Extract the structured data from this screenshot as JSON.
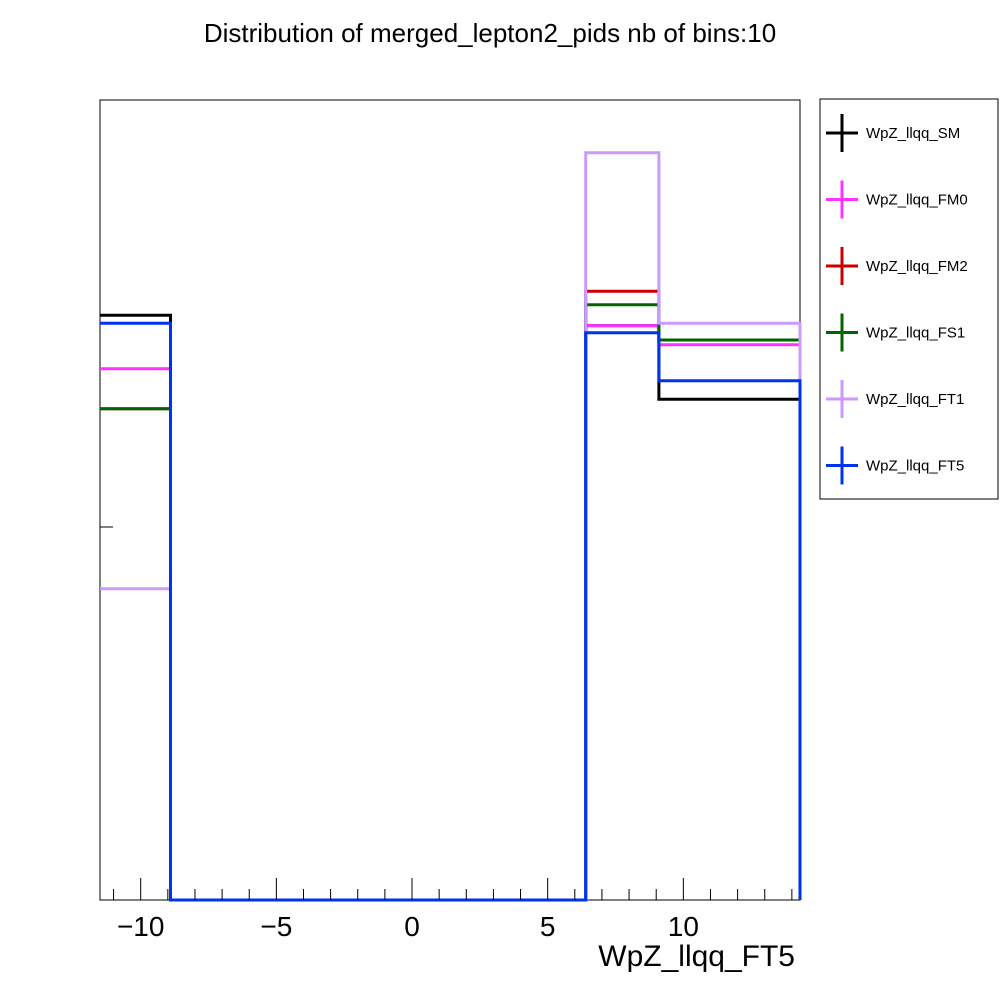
{
  "chart_data": {
    "type": "step-histogram",
    "title": "Distribution of merged_lepton2_pids nb of bins:10",
    "xlabel": "WpZ_llqq_FT5",
    "ylabel": "",
    "xlim": [
      -11.5,
      14.3
    ],
    "ylim": [
      0,
      1.0
    ],
    "bin_edges": [
      -11.5,
      -8.9,
      -6.4,
      -3.8,
      -1.3,
      1.3,
      3.8,
      6.4,
      9.1,
      11.7,
      14.3
    ],
    "x_ticks": [
      -10,
      -5,
      0,
      5,
      10
    ],
    "x_tick_labels": [
      "−10",
      "−5",
      "0",
      "5",
      "10"
    ],
    "legend_position": "right",
    "series": [
      {
        "name": "WpZ_llqq_SM",
        "color": "#000000",
        "values": [
          0.731,
          0,
          0,
          0,
          0,
          0,
          0,
          0.718,
          0.626,
          0.626
        ]
      },
      {
        "name": "WpZ_llqq_FM0",
        "color": "#ff33ff",
        "values": [
          0.664,
          0,
          0,
          0,
          0,
          0,
          0,
          0.718,
          0.694,
          0.694
        ]
      },
      {
        "name": "WpZ_llqq_FM2",
        "color": "#cc0000",
        "values": [
          0.614,
          0,
          0,
          0,
          0,
          0,
          0,
          0.761,
          0.7,
          0.7
        ]
      },
      {
        "name": "WpZ_llqq_FS1",
        "color": "#006600",
        "values": [
          0.614,
          0,
          0,
          0,
          0,
          0,
          0,
          0.744,
          0.7,
          0.7
        ]
      },
      {
        "name": "WpZ_llqq_FT1",
        "color": "#cc99ff",
        "values": [
          0.389,
          0,
          0,
          0,
          0,
          0,
          0,
          0.934,
          0.721,
          0.721
        ]
      },
      {
        "name": "WpZ_llqq_FT5",
        "color": "#0033ee",
        "values": [
          0.721,
          0,
          0,
          0,
          0,
          0,
          0,
          0.709,
          0.649,
          0.649
        ]
      }
    ]
  }
}
